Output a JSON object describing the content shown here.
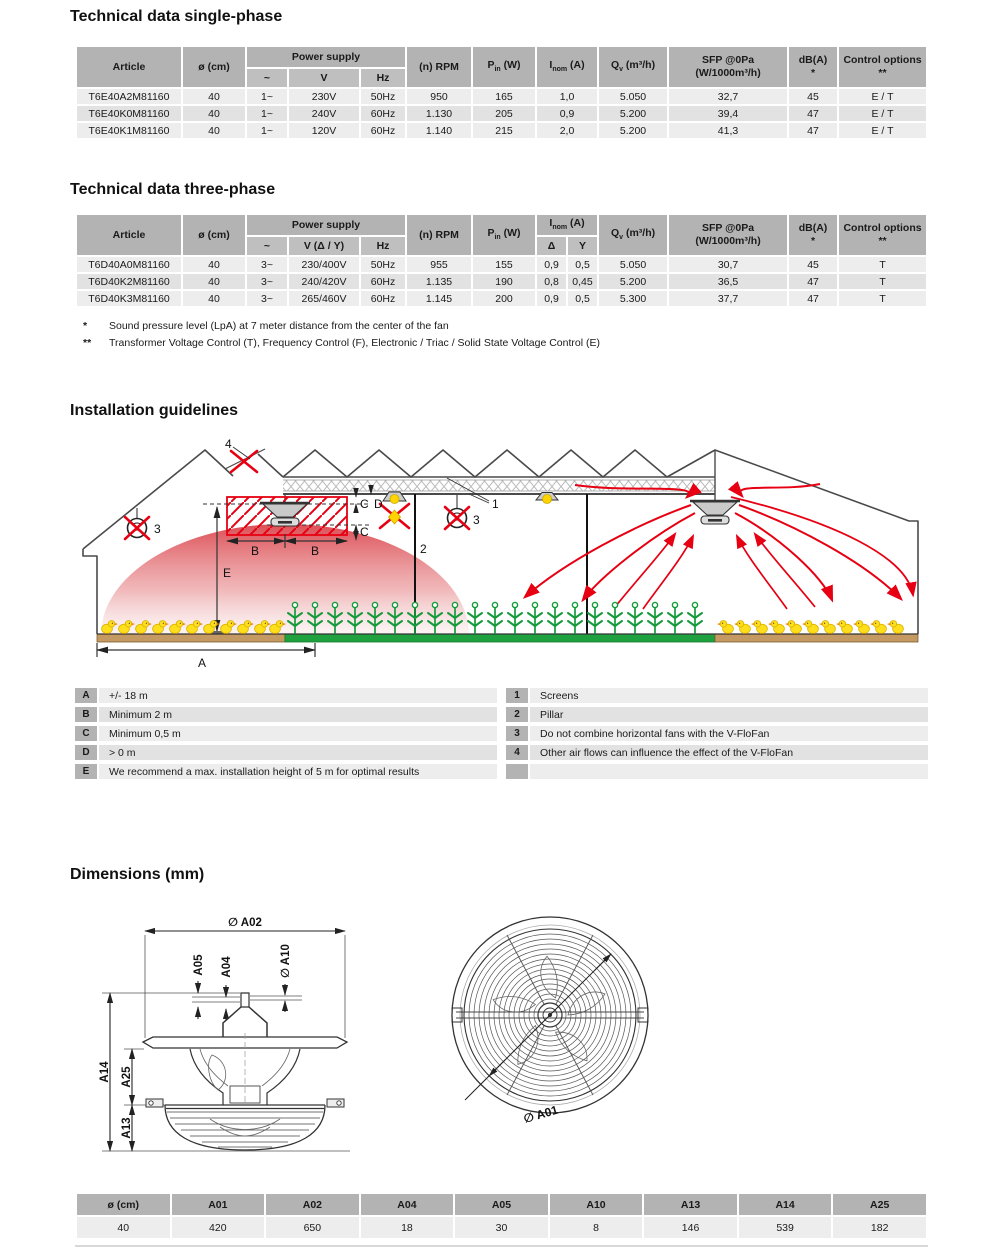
{
  "sections": {
    "single_phase": "Technical data single-phase",
    "three_phase": "Technical data three-phase",
    "installation": "Installation guidelines",
    "dimensions": "Dimensions (mm)"
  },
  "colors": {
    "accent_red": "#e60012",
    "header_gray": "#b3b3b3",
    "row_light": "#ededed",
    "row_dark": "#e2e2e2"
  },
  "tables": {
    "headers": {
      "article": "Article",
      "diameter": "ø (cm)",
      "power_supply": "Power supply",
      "phase": "~",
      "voltage": "V",
      "voltage_dy": "V (Δ / Y)",
      "hz": "Hz",
      "rpm": "(n) RPM",
      "p_base": "P",
      "p_sub": "in",
      "p_unit": " (W)",
      "i_base": "I",
      "i_sub": "nom",
      "i_unit": " (A)",
      "delta": "Δ",
      "wye": "Y",
      "q_base": "Q",
      "q_sub": "v",
      "q_unit": " (m³/h)",
      "sfp_line1": "SFP @0Pa",
      "sfp_line2": "(W/1000m³/h)",
      "db": "dB(A)",
      "db_note": "*",
      "control": "Control options",
      "control_note": "**"
    },
    "single_phase_rows": [
      [
        "T6E40A2M81160",
        "40",
        "1~",
        "230V",
        "50Hz",
        "950",
        "165",
        "1,0",
        "5.050",
        "32,7",
        "45",
        "E / T"
      ],
      [
        "T6E40K0M81160",
        "40",
        "1~",
        "240V",
        "60Hz",
        "1.130",
        "205",
        "0,9",
        "5.200",
        "39,4",
        "47",
        "E / T"
      ],
      [
        "T6E40K1M81160",
        "40",
        "1~",
        "120V",
        "60Hz",
        "1.140",
        "215",
        "2,0",
        "5.200",
        "41,3",
        "47",
        "E / T"
      ]
    ],
    "three_phase_rows": [
      [
        "T6D40A0M81160",
        "40",
        "3~",
        "230/400V",
        "50Hz",
        "955",
        "155",
        "0,9",
        "0,5",
        "5.050",
        "30,7",
        "45",
        "T"
      ],
      [
        "T6D40K2M81160",
        "40",
        "3~",
        "240/420V",
        "60Hz",
        "1.135",
        "190",
        "0,8",
        "0,45",
        "5.200",
        "36,5",
        "47",
        "T"
      ],
      [
        "T6D40K3M81160",
        "40",
        "3~",
        "265/460V",
        "60Hz",
        "1.145",
        "200",
        "0,9",
        "0,5",
        "5.300",
        "37,7",
        "47",
        "T"
      ]
    ]
  },
  "footnotes": [
    [
      "*",
      "Sound pressure level (LpA) at 7 meter distance from the center of the fan"
    ],
    [
      "**",
      "Transformer Voltage Control (T), Frequency Control (F), Electronic / Triac / Solid State Voltage Control (E)"
    ]
  ],
  "legend": {
    "left": [
      [
        "A",
        "+/- 18 m"
      ],
      [
        "B",
        "Minimum 2 m"
      ],
      [
        "C",
        "Minimum 0,5 m"
      ],
      [
        "D",
        "> 0 m"
      ],
      [
        "E",
        "We recommend a max. installation height of 5 m for optimal results"
      ]
    ],
    "right": [
      [
        "1",
        "Screens"
      ],
      [
        "2",
        "Pillar"
      ],
      [
        "3",
        "Do not combine horizontal fans with the V-FloFan"
      ],
      [
        "4",
        "Other air flows can influence the effect of the V-FloFan"
      ],
      [
        "",
        ""
      ]
    ]
  },
  "diagram": {
    "labels": {
      "a": "A",
      "b": "B",
      "c": "C",
      "d": "D",
      "e": "E",
      "n1": "1",
      "n2": "2",
      "n3": "3",
      "n4": "4"
    }
  },
  "drawing": {
    "labels": {
      "a01": "∅ A01",
      "a02": "∅ A02",
      "a04": "A04",
      "a05": "A05",
      "a10": "∅ A10",
      "a13": "A13",
      "a14": "A14",
      "a25": "A25"
    }
  },
  "dims_table": {
    "headers": [
      "ø (cm)",
      "A01",
      "A02",
      "A04",
      "A05",
      "A10",
      "A13",
      "A14",
      "A25"
    ],
    "rows": [
      [
        "40",
        "420",
        "650",
        "18",
        "30",
        "8",
        "146",
        "539",
        "182"
      ]
    ]
  }
}
